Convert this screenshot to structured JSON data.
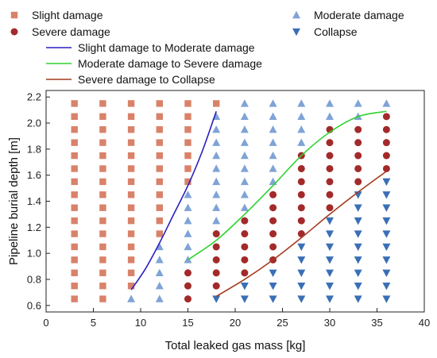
{
  "chart_data": {
    "type": "scatter",
    "xlabel": "Total leaked gas mass [kg]",
    "ylabel": "Pipeline burial depth [m]",
    "xlim": [
      0,
      40
    ],
    "ylim": [
      0.55,
      2.25
    ],
    "x_ticks": [
      "0",
      "5",
      "10",
      "15",
      "20",
      "25",
      "30",
      "35",
      "40"
    ],
    "y_ticks": [
      "0.6",
      "0.8",
      "1.0",
      "1.2",
      "1.4",
      "1.6",
      "1.8",
      "2.0",
      "2.2"
    ],
    "x_tick_values": [
      0,
      5,
      10,
      15,
      20,
      25,
      30,
      35,
      40
    ],
    "y_tick_values": [
      0.6,
      0.8,
      1.0,
      1.2,
      1.4,
      1.6,
      1.8,
      2.0,
      2.2
    ],
    "grid": false,
    "legend_position": "top",
    "series": [
      {
        "name": "Slight damage",
        "marker": "square",
        "color": "#d9826a",
        "points": [
          [
            3,
            0.65
          ],
          [
            3,
            0.75
          ],
          [
            3,
            0.85
          ],
          [
            3,
            0.95
          ],
          [
            3,
            1.05
          ],
          [
            3,
            1.15
          ],
          [
            3,
            1.25
          ],
          [
            3,
            1.35
          ],
          [
            3,
            1.45
          ],
          [
            3,
            1.55
          ],
          [
            3,
            1.65
          ],
          [
            3,
            1.75
          ],
          [
            3,
            1.85
          ],
          [
            3,
            1.95
          ],
          [
            3,
            2.05
          ],
          [
            3,
            2.15
          ],
          [
            6,
            0.65
          ],
          [
            6,
            0.75
          ],
          [
            6,
            0.85
          ],
          [
            6,
            0.95
          ],
          [
            6,
            1.05
          ],
          [
            6,
            1.15
          ],
          [
            6,
            1.25
          ],
          [
            6,
            1.35
          ],
          [
            6,
            1.45
          ],
          [
            6,
            1.55
          ],
          [
            6,
            1.65
          ],
          [
            6,
            1.75
          ],
          [
            6,
            1.85
          ],
          [
            6,
            1.95
          ],
          [
            6,
            2.05
          ],
          [
            6,
            2.15
          ],
          [
            9,
            0.75
          ],
          [
            9,
            0.85
          ],
          [
            9,
            0.95
          ],
          [
            9,
            1.05
          ],
          [
            9,
            1.15
          ],
          [
            9,
            1.25
          ],
          [
            9,
            1.35
          ],
          [
            9,
            1.45
          ],
          [
            9,
            1.55
          ],
          [
            9,
            1.65
          ],
          [
            9,
            1.75
          ],
          [
            9,
            1.85
          ],
          [
            9,
            1.95
          ],
          [
            9,
            2.05
          ],
          [
            9,
            2.15
          ],
          [
            12,
            1.15
          ],
          [
            12,
            1.25
          ],
          [
            12,
            1.35
          ],
          [
            12,
            1.45
          ],
          [
            12,
            1.55
          ],
          [
            12,
            1.65
          ],
          [
            12,
            1.75
          ],
          [
            12,
            1.85
          ],
          [
            12,
            1.95
          ],
          [
            12,
            2.05
          ],
          [
            12,
            2.15
          ],
          [
            15,
            1.55
          ],
          [
            15,
            1.65
          ],
          [
            15,
            1.75
          ],
          [
            15,
            1.85
          ],
          [
            15,
            1.95
          ],
          [
            15,
            2.05
          ],
          [
            15,
            2.15
          ],
          [
            18,
            2.15
          ]
        ]
      },
      {
        "name": "Severe damage",
        "marker": "circle",
        "color": "#a32a2a",
        "points": [
          [
            15,
            0.65
          ],
          [
            15,
            0.75
          ],
          [
            15,
            0.85
          ],
          [
            18,
            0.75
          ],
          [
            18,
            0.85
          ],
          [
            18,
            0.95
          ],
          [
            18,
            1.05
          ],
          [
            18,
            1.15
          ],
          [
            21,
            0.85
          ],
          [
            21,
            0.95
          ],
          [
            21,
            1.05
          ],
          [
            21,
            1.15
          ],
          [
            21,
            1.25
          ],
          [
            24,
            0.95
          ],
          [
            24,
            1.05
          ],
          [
            24,
            1.15
          ],
          [
            24,
            1.25
          ],
          [
            24,
            1.35
          ],
          [
            24,
            1.45
          ],
          [
            27,
            1.15
          ],
          [
            27,
            1.25
          ],
          [
            27,
            1.35
          ],
          [
            27,
            1.45
          ],
          [
            27,
            1.55
          ],
          [
            27,
            1.65
          ],
          [
            27,
            1.75
          ],
          [
            30,
            1.35
          ],
          [
            30,
            1.45
          ],
          [
            30,
            1.55
          ],
          [
            30,
            1.65
          ],
          [
            30,
            1.75
          ],
          [
            30,
            1.85
          ],
          [
            30,
            1.95
          ],
          [
            33,
            1.55
          ],
          [
            33,
            1.65
          ],
          [
            33,
            1.75
          ],
          [
            33,
            1.85
          ],
          [
            33,
            1.95
          ],
          [
            36,
            1.65
          ],
          [
            36,
            1.75
          ],
          [
            36,
            1.85
          ],
          [
            36,
            1.95
          ],
          [
            36,
            2.05
          ]
        ]
      },
      {
        "name": "Moderate damage",
        "marker": "triangle-up",
        "color": "#7fa3d6",
        "points": [
          [
            9,
            0.65
          ],
          [
            12,
            0.65
          ],
          [
            12,
            0.75
          ],
          [
            12,
            0.85
          ],
          [
            12,
            0.95
          ],
          [
            12,
            1.05
          ],
          [
            15,
            0.95
          ],
          [
            15,
            1.05
          ],
          [
            15,
            1.15
          ],
          [
            15,
            1.25
          ],
          [
            15,
            1.35
          ],
          [
            15,
            1.45
          ],
          [
            18,
            1.25
          ],
          [
            18,
            1.35
          ],
          [
            18,
            1.45
          ],
          [
            18,
            1.55
          ],
          [
            18,
            1.65
          ],
          [
            18,
            1.75
          ],
          [
            18,
            1.85
          ],
          [
            18,
            1.95
          ],
          [
            18,
            2.05
          ],
          [
            21,
            1.35
          ],
          [
            21,
            1.45
          ],
          [
            21,
            1.55
          ],
          [
            21,
            1.65
          ],
          [
            21,
            1.75
          ],
          [
            21,
            1.85
          ],
          [
            21,
            1.95
          ],
          [
            21,
            2.05
          ],
          [
            21,
            2.15
          ],
          [
            24,
            1.55
          ],
          [
            24,
            1.65
          ],
          [
            24,
            1.75
          ],
          [
            24,
            1.85
          ],
          [
            24,
            1.95
          ],
          [
            24,
            2.05
          ],
          [
            24,
            2.15
          ],
          [
            27,
            1.85
          ],
          [
            27,
            1.95
          ],
          [
            27,
            2.05
          ],
          [
            27,
            2.15
          ],
          [
            30,
            2.05
          ],
          [
            30,
            2.15
          ],
          [
            33,
            2.05
          ],
          [
            33,
            2.15
          ],
          [
            36,
            2.15
          ]
        ]
      },
      {
        "name": "Collapse",
        "marker": "triangle-down",
        "color": "#3a6fb5",
        "points": [
          [
            18,
            0.65
          ],
          [
            21,
            0.65
          ],
          [
            21,
            0.75
          ],
          [
            24,
            0.65
          ],
          [
            24,
            0.75
          ],
          [
            24,
            0.85
          ],
          [
            27,
            0.65
          ],
          [
            27,
            0.75
          ],
          [
            27,
            0.85
          ],
          [
            27,
            0.95
          ],
          [
            27,
            1.05
          ],
          [
            30,
            0.65
          ],
          [
            30,
            0.75
          ],
          [
            30,
            0.85
          ],
          [
            30,
            0.95
          ],
          [
            30,
            1.05
          ],
          [
            30,
            1.15
          ],
          [
            30,
            1.25
          ],
          [
            33,
            0.65
          ],
          [
            33,
            0.75
          ],
          [
            33,
            0.85
          ],
          [
            33,
            0.95
          ],
          [
            33,
            1.05
          ],
          [
            33,
            1.15
          ],
          [
            33,
            1.25
          ],
          [
            33,
            1.35
          ],
          [
            33,
            1.45
          ],
          [
            36,
            0.65
          ],
          [
            36,
            0.75
          ],
          [
            36,
            0.85
          ],
          [
            36,
            0.95
          ],
          [
            36,
            1.05
          ],
          [
            36,
            1.15
          ],
          [
            36,
            1.25
          ],
          [
            36,
            1.35
          ],
          [
            36,
            1.45
          ],
          [
            36,
            1.55
          ]
        ]
      },
      {
        "name": "Slight damage to Moderate damage",
        "marker": "line",
        "color": "#2a1fc0",
        "points": [
          [
            9,
            0.72
          ],
          [
            10.5,
            0.88
          ],
          [
            12,
            1.08
          ],
          [
            13.5,
            1.3
          ],
          [
            15,
            1.52
          ],
          [
            16.5,
            1.78
          ],
          [
            18,
            2.09
          ]
        ]
      },
      {
        "name": "Moderate damage to Severe damage",
        "marker": "line",
        "color": "#2fd12f",
        "points": [
          [
            15,
            0.95
          ],
          [
            18,
            1.1
          ],
          [
            21,
            1.3
          ],
          [
            24,
            1.52
          ],
          [
            27,
            1.75
          ],
          [
            30,
            1.93
          ],
          [
            33,
            2.05
          ],
          [
            36,
            2.09
          ]
        ]
      },
      {
        "name": "Severe damage to Collapse",
        "marker": "line",
        "color": "#a33a1f",
        "points": [
          [
            18,
            0.67
          ],
          [
            21,
            0.8
          ],
          [
            24,
            0.95
          ],
          [
            27,
            1.12
          ],
          [
            30,
            1.3
          ],
          [
            33,
            1.47
          ],
          [
            36,
            1.63
          ]
        ]
      }
    ],
    "legend": [
      {
        "label": "Slight damage",
        "marker": "square",
        "color": "#d9826a"
      },
      {
        "label": "Moderate damage",
        "marker": "triangle-up",
        "color": "#7fa3d6"
      },
      {
        "label": "Severe damage",
        "marker": "circle",
        "color": "#a32a2a"
      },
      {
        "label": "Collapse",
        "marker": "triangle-down",
        "color": "#3a6fb5"
      },
      {
        "label": "Slight damage to Moderate damage",
        "marker": "line",
        "color": "#2a1fc0"
      },
      {
        "label": "Moderate damage to Severe damage",
        "marker": "line",
        "color": "#2fd12f"
      },
      {
        "label": "Severe damage to Collapse",
        "marker": "line",
        "color": "#a33a1f"
      }
    ]
  }
}
